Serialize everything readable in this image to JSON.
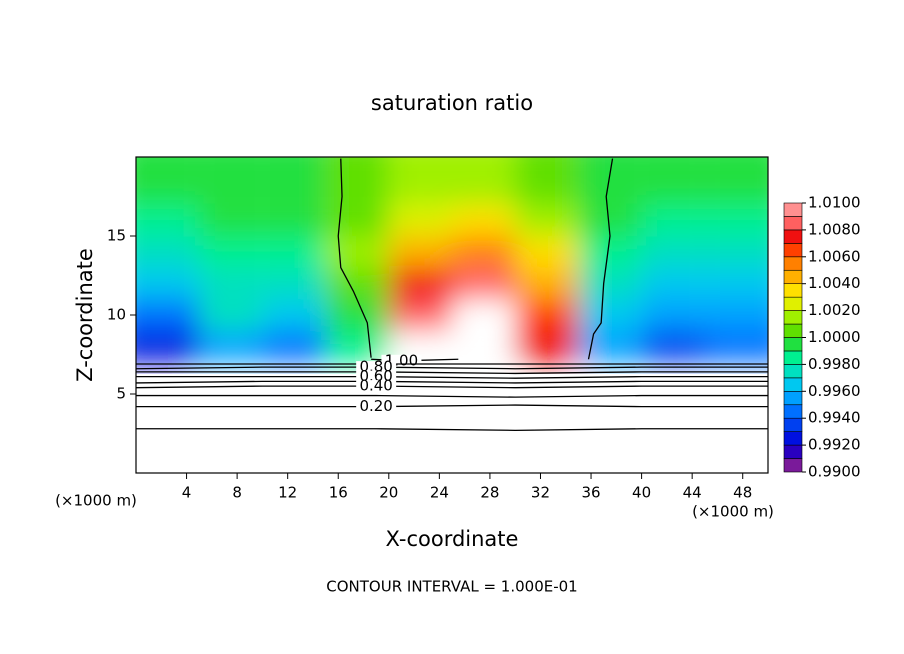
{
  "chart_data": {
    "type": "contour",
    "title": "saturation ratio",
    "x_label": "X-coordinate",
    "y_label": "Z-coordinate",
    "x_unit_labels": [
      "(×1000 m)",
      "(×1000 m)"
    ],
    "footer": "CONTOUR INTERVAL = 1.000E-01",
    "xlim": [
      0,
      50
    ],
    "ylim": [
      0,
      20
    ],
    "xticks": [
      4,
      8,
      12,
      16,
      20,
      24,
      28,
      32,
      36,
      40,
      44,
      48
    ],
    "yticks": [
      5,
      10,
      15
    ],
    "field": {
      "x": [
        2.5,
        7.5,
        12.5,
        17.5,
        22.5,
        27.5,
        32.5,
        37.5,
        42.5,
        47.5
      ],
      "z": [
        8,
        10,
        12,
        14,
        16,
        18
      ],
      "values": [
        [
          0.992,
          0.995,
          0.994,
          0.998,
          1.01,
          1.01,
          1.007,
          0.995,
          0.993,
          0.994
        ],
        [
          0.994,
          0.997,
          0.996,
          0.999,
          1.008,
          1.01,
          1.006,
          0.996,
          0.995,
          0.995
        ],
        [
          0.996,
          0.997,
          0.997,
          1.0,
          1.007,
          1.008,
          1.004,
          0.997,
          0.996,
          0.996
        ],
        [
          0.997,
          0.998,
          0.998,
          1.001,
          1.004,
          1.005,
          1.003,
          0.998,
          0.997,
          0.997
        ],
        [
          0.998,
          0.999,
          0.999,
          1.0,
          1.002,
          1.003,
          1.001,
          0.999,
          0.998,
          0.998
        ],
        [
          0.999,
          0.999,
          0.999,
          1.0,
          1.001,
          1.001,
          1.0,
          0.999,
          0.999,
          0.999
        ]
      ]
    },
    "colorbar": {
      "levels": [
        0.99,
        0.991,
        0.992,
        0.993,
        0.994,
        0.995,
        0.996,
        0.997,
        0.998,
        0.999,
        1.0,
        1.001,
        1.002,
        1.003,
        1.004,
        1.005,
        1.006,
        1.007,
        1.008,
        1.009,
        1.01
      ],
      "colors": [
        "#7a1a9a",
        "#2a00c0",
        "#0010e0",
        "#0040f0",
        "#0070ff",
        "#00a0ff",
        "#00c8f0",
        "#00e0c0",
        "#00f090",
        "#20e040",
        "#60e000",
        "#a0f000",
        "#e0f000",
        "#ffe000",
        "#ffb000",
        "#ff8000",
        "#ff4000",
        "#f01010",
        "#ff6060",
        "#ff9090"
      ],
      "ticks": [
        {
          "value": 0.99,
          "label": "0.9900"
        },
        {
          "value": 0.992,
          "label": "0.9920"
        },
        {
          "value": 0.994,
          "label": "0.9940"
        },
        {
          "value": 0.996,
          "label": "0.9960"
        },
        {
          "value": 0.998,
          "label": "0.9980"
        },
        {
          "value": 1.0,
          "label": "1.0000"
        },
        {
          "value": 1.002,
          "label": "1.0020"
        },
        {
          "value": 1.004,
          "label": "1.0040"
        },
        {
          "value": 1.006,
          "label": "1.0060"
        },
        {
          "value": 1.008,
          "label": "1.0080"
        },
        {
          "value": 1.01,
          "label": "1.0100"
        }
      ]
    },
    "contours": [
      {
        "level": {
          "value": 1,
          "label": "1.00"
        },
        "x": [
          16.2,
          16.3,
          16.0,
          16.2,
          17.2,
          18.3,
          18.6,
          null,
          18.6,
          21,
          25.5,
          null,
          35.8,
          36.2,
          36.8,
          37.0,
          37.5,
          37.2,
          37.7
        ],
        "z": [
          19.9,
          17.5,
          15.0,
          13.0,
          11.5,
          9.5,
          7.3,
          null,
          7.2,
          7.1,
          7.2,
          null,
          7.2,
          8.8,
          9.5,
          12.0,
          15.0,
          17.5,
          19.9
        ]
      },
      {
        "level": 0.9,
        "x": [
          0,
          10,
          19,
          30,
          40,
          50
        ],
        "z": [
          6.9,
          6.9,
          6.9,
          6.9,
          6.9,
          6.9
        ]
      },
      {
        "level": {
          "value": 0.8,
          "label": "0.80"
        },
        "x": [
          0,
          10,
          19,
          30,
          40,
          50
        ],
        "z": [
          6.6,
          6.7,
          6.7,
          6.6,
          6.7,
          6.7
        ]
      },
      {
        "level": 0.7,
        "x": [
          0,
          10,
          19,
          30,
          40,
          50
        ],
        "z": [
          6.4,
          6.4,
          6.4,
          6.3,
          6.4,
          6.4
        ]
      },
      {
        "level": {
          "value": 0.6,
          "label": "0.60"
        },
        "x": [
          0,
          10,
          19,
          30,
          40,
          50
        ],
        "z": [
          6.1,
          6.1,
          6.1,
          6.0,
          6.1,
          6.1
        ]
      },
      {
        "level": 0.5,
        "x": [
          0,
          10,
          19,
          30,
          40,
          50
        ],
        "z": [
          5.7,
          5.8,
          5.8,
          5.7,
          5.8,
          5.8
        ]
      },
      {
        "level": {
          "value": 0.4,
          "label": "0.40"
        },
        "x": [
          0,
          10,
          19,
          30,
          40,
          50
        ],
        "z": [
          5.4,
          5.5,
          5.5,
          5.4,
          5.5,
          5.5
        ]
      },
      {
        "level": 0.3,
        "x": [
          0,
          10,
          19,
          30,
          40,
          50
        ],
        "z": [
          4.9,
          4.9,
          4.9,
          4.8,
          4.9,
          4.9
        ]
      },
      {
        "level": {
          "value": 0.2,
          "label": "0.20"
        },
        "x": [
          0,
          10,
          19,
          30,
          40,
          50
        ],
        "z": [
          4.2,
          4.2,
          4.2,
          4.3,
          4.2,
          4.2
        ]
      },
      {
        "level": 0.1,
        "x": [
          0,
          10,
          19,
          30,
          40,
          50
        ],
        "z": [
          2.8,
          2.8,
          2.8,
          2.7,
          2.8,
          2.8
        ]
      }
    ]
  }
}
